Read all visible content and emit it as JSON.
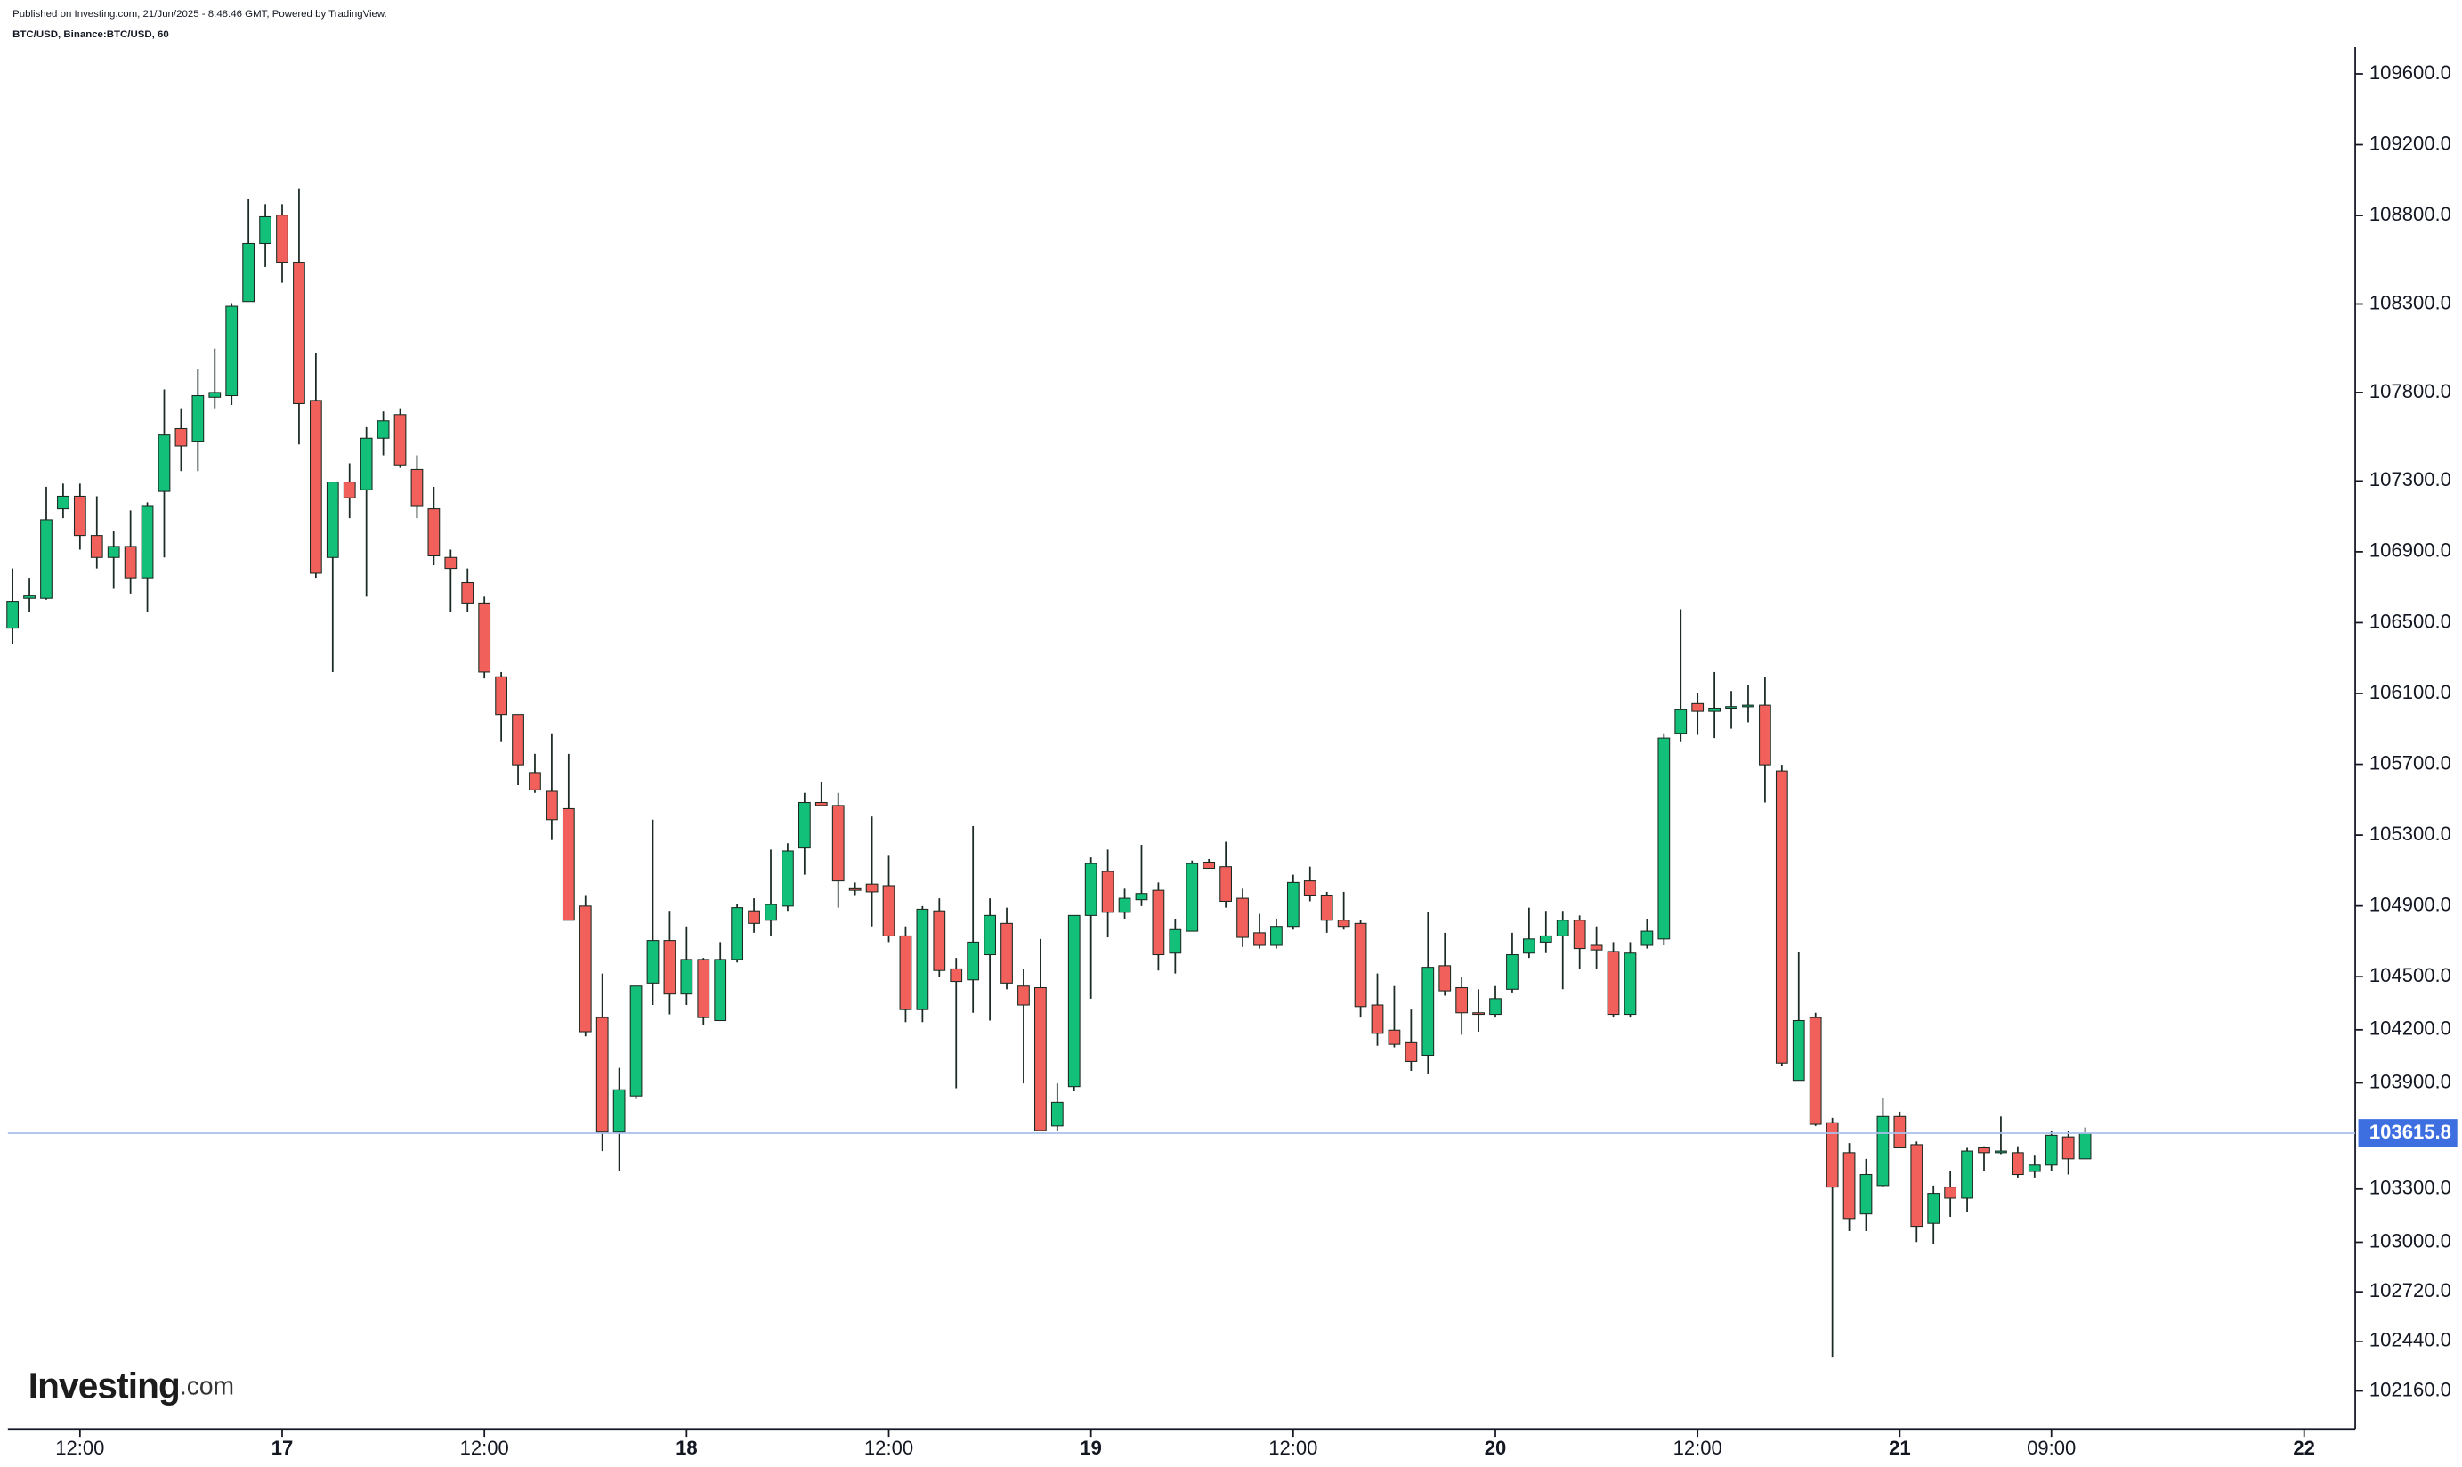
{
  "header": {
    "published": "Published on Investing.com, 21/Jun/2025 - 8:48:46 GMT, Powered by TradingView.",
    "symbol": "BTC/USD, Binance:BTC/USD, 60"
  },
  "logo": {
    "brand": "Investing",
    "suffix": ".com"
  },
  "chart_data": {
    "type": "candlestick",
    "open": [
      106469,
      106637,
      106637,
      107143,
      107214,
      106992,
      106868,
      106930,
      106753,
      107241,
      107596,
      107525,
      107773,
      107782,
      108314,
      108642,
      108802,
      108536,
      107755,
      106868,
      107294,
      107250,
      107542,
      107675,
      107365,
      107143,
      106868,
      106726,
      106611,
      106194,
      105981,
      105653,
      105547,
      105449,
      104899,
      104269,
      103622,
      103826,
      104464,
      104704,
      104402,
      104597,
      104252,
      104597,
      104872,
      104819,
      104899,
      105227,
      105484,
      105467,
      104997,
      105023,
      105014,
      104730,
      104314,
      104872,
      104544,
      104482,
      104624,
      104801,
      104447,
      104438,
      103657,
      103879,
      104846,
      105094,
      104864,
      104935,
      104988,
      104633,
      104757,
      105147,
      105121,
      104943,
      104748,
      104677,
      104784,
      105041,
      104961,
      104819,
      104801,
      104340,
      104198,
      104127,
      104056,
      104562,
      104438,
      104296,
      104287,
      104429,
      104633,
      104695,
      104730,
      104819,
      104677,
      104642,
      104287,
      104677,
      104713,
      105875,
      106043,
      105999,
      106017,
      106026,
      106034,
      105662,
      103914,
      104269,
      103675,
      103506,
      103160,
      103320,
      103710,
      103551,
      103107,
      103311,
      103249,
      103533,
      103506,
      103506,
      103400,
      103436,
      103595,
      103471
    ],
    "high": [
      106806,
      106753,
      107267,
      107285,
      107285,
      107214,
      107019,
      107134,
      107179,
      107817,
      107711,
      107933,
      108048,
      108305,
      108891,
      108864,
      108864,
      108953,
      108021,
      107294,
      107400,
      107604,
      107693,
      107711,
      107445,
      107267,
      106912,
      106806,
      106646,
      106221,
      105981,
      105759,
      105875,
      105759,
      104961,
      104518,
      103985,
      104447,
      105387,
      104872,
      104784,
      104606,
      104695,
      104908,
      104943,
      105218,
      105254,
      105538,
      105600,
      105538,
      105032,
      105405,
      105183,
      104784,
      104899,
      104943,
      104606,
      105351,
      104943,
      104890,
      104544,
      104713,
      103897,
      104846,
      105174,
      105218,
      104997,
      105245,
      105032,
      104828,
      105156,
      105165,
      105263,
      104997,
      104855,
      104828,
      105076,
      105121,
      104979,
      104979,
      104819,
      104518,
      104447,
      104314,
      104864,
      104748,
      104500,
      104429,
      104447,
      104748,
      104890,
      104872,
      104872,
      104846,
      104784,
      104695,
      104695,
      104828,
      105875,
      106575,
      106105,
      106221,
      106114,
      106150,
      106194,
      105697,
      104642,
      104296,
      103702,
      103560,
      103471,
      103817,
      103737,
      103569,
      103320,
      103400,
      103533,
      103542,
      103710,
      103542,
      103489,
      103631,
      103631,
      103648
    ],
    "low": [
      106380,
      106558,
      106629,
      107090,
      106912,
      106806,
      106691,
      106664,
      106558,
      106868,
      107356,
      107356,
      107711,
      107729,
      108314,
      108509,
      108420,
      107507,
      106753,
      106221,
      107090,
      106646,
      107445,
      107374,
      107090,
      106824,
      106558,
      106558,
      106185,
      105830,
      105582,
      105538,
      105272,
      104819,
      104163,
      103515,
      103400,
      103808,
      104340,
      104287,
      104340,
      104225,
      104252,
      104580,
      104748,
      104730,
      104872,
      105076,
      105467,
      104890,
      104961,
      104784,
      104695,
      104243,
      104243,
      104500,
      103870,
      104296,
      104252,
      104429,
      103897,
      103631,
      103631,
      103852,
      104376,
      104722,
      104828,
      104899,
      104535,
      104518,
      104757,
      105112,
      104890,
      104668,
      104659,
      104659,
      104766,
      104926,
      104748,
      104766,
      104269,
      104110,
      104101,
      103968,
      103950,
      104393,
      104172,
      104189,
      104269,
      104411,
      104606,
      104633,
      104429,
      104544,
      104544,
      104269,
      104269,
      104659,
      104677,
      105830,
      105866,
      105848,
      105901,
      105937,
      105484,
      103994,
      103914,
      103657,
      102353,
      103063,
      103063,
      103311,
      103533,
      103001,
      102992,
      103143,
      103169,
      103400,
      103498,
      103365,
      103365,
      103400,
      103382,
      103471
    ],
    "close": [
      106620,
      106655,
      107081,
      107214,
      106992,
      106868,
      106930,
      106753,
      107161,
      107560,
      107498,
      107782,
      107800,
      108287,
      108642,
      108793,
      108536,
      107737,
      106779,
      107294,
      107205,
      107542,
      107640,
      107391,
      107161,
      106877,
      106806,
      106611,
      106221,
      105981,
      105697,
      105555,
      105387,
      104819,
      104189,
      103622,
      103861,
      104447,
      104704,
      104402,
      104597,
      104269,
      104597,
      104890,
      104801,
      104908,
      105210,
      105484,
      105467,
      105041,
      104988,
      104979,
      104730,
      104314,
      104881,
      104535,
      104473,
      104695,
      104846,
      104464,
      104340,
      103631,
      103790,
      104846,
      105139,
      104864,
      104943,
      104970,
      104624,
      104766,
      105139,
      105112,
      104926,
      104722,
      104677,
      104784,
      105032,
      104961,
      104819,
      104784,
      104331,
      104180,
      104118,
      104021,
      104553,
      104420,
      104296,
      104287,
      104376,
      104624,
      104713,
      104730,
      104819,
      104659,
      104651,
      104287,
      104633,
      104757,
      105848,
      106008,
      105999,
      106017,
      106026,
      106034,
      105697,
      104012,
      104252,
      103666,
      103311,
      103134,
      103382,
      103710,
      103533,
      103090,
      103276,
      103249,
      103515,
      103506,
      103515,
      103382,
      103436,
      103604,
      103471,
      103615.8
    ],
    "up_color": "#13c07a",
    "down_color": "#f2605b",
    "last_price_color": "#3d6fe0",
    "xlim": [
      -0.28,
      139.03
    ],
    "xticks": [
      {
        "value": 4,
        "label": "12:00"
      },
      {
        "value": 16,
        "label": "17"
      },
      {
        "value": 28,
        "label": "12:00"
      },
      {
        "value": 40,
        "label": "18"
      },
      {
        "value": 52,
        "label": "12:00"
      },
      {
        "value": 64,
        "label": "19"
      },
      {
        "value": 76,
        "label": "12:00"
      },
      {
        "value": 88,
        "label": "20"
      },
      {
        "value": 100,
        "label": "12:00"
      },
      {
        "value": 112,
        "label": "21"
      },
      {
        "value": 121,
        "label": "09:00"
      },
      {
        "value": 136,
        "label": "22"
      }
    ],
    "ylim": [
      101945,
      109751
    ],
    "yticks": [
      {
        "value": 109600,
        "label": "109600.0"
      },
      {
        "value": 109200,
        "label": "109200.0"
      },
      {
        "value": 108800,
        "label": "108800.0"
      },
      {
        "value": 108300,
        "label": "108300.0"
      },
      {
        "value": 107800,
        "label": "107800.0"
      },
      {
        "value": 107300,
        "label": "107300.0"
      },
      {
        "value": 106900,
        "label": "106900.0"
      },
      {
        "value": 106500,
        "label": "106500.0"
      },
      {
        "value": 106100,
        "label": "106100.0"
      },
      {
        "value": 105700,
        "label": "105700.0"
      },
      {
        "value": 105300,
        "label": "105300.0"
      },
      {
        "value": 104900,
        "label": "104900.0"
      },
      {
        "value": 104500,
        "label": "104500.0"
      },
      {
        "value": 104200,
        "label": "104200.0"
      },
      {
        "value": 103900,
        "label": "103900.0"
      },
      {
        "value": 103300,
        "label": "103300.0"
      },
      {
        "value": 103000,
        "label": "103000.0"
      },
      {
        "value": 102720,
        "label": "102720.0"
      },
      {
        "value": 102440,
        "label": "102440.0"
      },
      {
        "value": 102160,
        "label": "102160.0"
      }
    ],
    "grid": false
  }
}
